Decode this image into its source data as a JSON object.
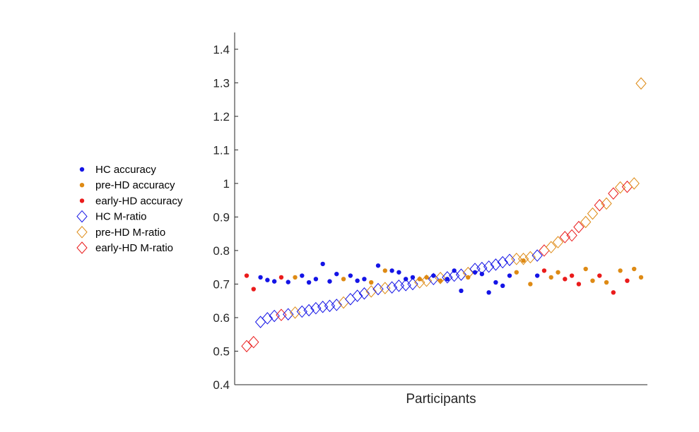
{
  "chart_data": {
    "type": "scatter",
    "title": "",
    "xlabel": "Participants",
    "ylabel": "",
    "ylim": [
      0.4,
      1.45
    ],
    "yticks": [
      "0.4",
      "0.5",
      "0.6",
      "0.7",
      "0.8",
      "0.9",
      "1",
      "1.1",
      "1.2",
      "1.3",
      "1.4"
    ],
    "grid": false,
    "legend_position": "left",
    "colors": {
      "HC": "#1414e6",
      "pre-HD": "#de8a14",
      "early-HD": "#ea1b1b"
    },
    "legend": [
      {
        "label": "HC accuracy",
        "marker": "dot",
        "group": "HC"
      },
      {
        "label": "pre-HD accuracy",
        "marker": "dot",
        "group": "pre-HD"
      },
      {
        "label": "early-HD accuracy",
        "marker": "dot",
        "group": "early-HD"
      },
      {
        "label": "HC M-ratio",
        "marker": "diamond",
        "group": "HC"
      },
      {
        "label": "pre-HD M-ratio",
        "marker": "diamond",
        "group": "pre-HD"
      },
      {
        "label": "early-HD M-ratio",
        "marker": "diamond",
        "group": "early-HD"
      }
    ],
    "participants": [
      {
        "g": "early-HD",
        "m": 0.515,
        "a": 0.725
      },
      {
        "g": "early-HD",
        "m": 0.527,
        "a": 0.685
      },
      {
        "g": "HC",
        "m": 0.587,
        "a": 0.72
      },
      {
        "g": "HC",
        "m": 0.598,
        "a": 0.712
      },
      {
        "g": "HC",
        "m": 0.605,
        "a": 0.708
      },
      {
        "g": "early-HD",
        "m": 0.608,
        "a": 0.72
      },
      {
        "g": "HC",
        "m": 0.61,
        "a": 0.706
      },
      {
        "g": "pre-HD",
        "m": 0.615,
        "a": 0.72
      },
      {
        "g": "HC",
        "m": 0.618,
        "a": 0.725
      },
      {
        "g": "HC",
        "m": 0.622,
        "a": 0.705
      },
      {
        "g": "HC",
        "m": 0.628,
        "a": 0.715
      },
      {
        "g": "HC",
        "m": 0.632,
        "a": 0.76
      },
      {
        "g": "HC",
        "m": 0.635,
        "a": 0.708
      },
      {
        "g": "HC",
        "m": 0.638,
        "a": 0.73
      },
      {
        "g": "pre-HD",
        "m": 0.645,
        "a": 0.715
      },
      {
        "g": "HC",
        "m": 0.655,
        "a": 0.725
      },
      {
        "g": "HC",
        "m": 0.665,
        "a": 0.71
      },
      {
        "g": "HC",
        "m": 0.672,
        "a": 0.715
      },
      {
        "g": "pre-HD",
        "m": 0.678,
        "a": 0.705
      },
      {
        "g": "HC",
        "m": 0.685,
        "a": 0.755
      },
      {
        "g": "pre-HD",
        "m": 0.688,
        "a": 0.74
      },
      {
        "g": "HC",
        "m": 0.69,
        "a": 0.74
      },
      {
        "g": "HC",
        "m": 0.695,
        "a": 0.735
      },
      {
        "g": "HC",
        "m": 0.697,
        "a": 0.715
      },
      {
        "g": "HC",
        "m": 0.7,
        "a": 0.72
      },
      {
        "g": "pre-HD",
        "m": 0.705,
        "a": 0.715
      },
      {
        "g": "pre-HD",
        "m": 0.71,
        "a": 0.72
      },
      {
        "g": "HC",
        "m": 0.715,
        "a": 0.725
      },
      {
        "g": "pre-HD",
        "m": 0.718,
        "a": 0.71
      },
      {
        "g": "HC",
        "m": 0.72,
        "a": 0.715
      },
      {
        "g": "HC",
        "m": 0.725,
        "a": 0.74
      },
      {
        "g": "HC",
        "m": 0.728,
        "a": 0.68
      },
      {
        "g": "pre-HD",
        "m": 0.733,
        "a": 0.72
      },
      {
        "g": "HC",
        "m": 0.745,
        "a": 0.735
      },
      {
        "g": "HC",
        "m": 0.748,
        "a": 0.73
      },
      {
        "g": "HC",
        "m": 0.752,
        "a": 0.675
      },
      {
        "g": "HC",
        "m": 0.758,
        "a": 0.705
      },
      {
        "g": "HC",
        "m": 0.765,
        "a": 0.695
      },
      {
        "g": "HC",
        "m": 0.772,
        "a": 0.725
      },
      {
        "g": "pre-HD",
        "m": 0.775,
        "a": 0.735
      },
      {
        "g": "pre-HD",
        "m": 0.775,
        "a": 0.77
      },
      {
        "g": "pre-HD",
        "m": 0.78,
        "a": 0.7
      },
      {
        "g": "HC",
        "m": 0.785,
        "a": 0.725
      },
      {
        "g": "early-HD",
        "m": 0.8,
        "a": 0.74
      },
      {
        "g": "pre-HD",
        "m": 0.81,
        "a": 0.72
      },
      {
        "g": "pre-HD",
        "m": 0.825,
        "a": 0.735
      },
      {
        "g": "early-HD",
        "m": 0.84,
        "a": 0.715
      },
      {
        "g": "early-HD",
        "m": 0.845,
        "a": 0.725
      },
      {
        "g": "early-HD",
        "m": 0.87,
        "a": 0.7
      },
      {
        "g": "pre-HD",
        "m": 0.885,
        "a": 0.745
      },
      {
        "g": "pre-HD",
        "m": 0.91,
        "a": 0.71
      },
      {
        "g": "early-HD",
        "m": 0.935,
        "a": 0.725
      },
      {
        "g": "pre-HD",
        "m": 0.94,
        "a": 0.705
      },
      {
        "g": "early-HD",
        "m": 0.97,
        "a": 0.675
      },
      {
        "g": "pre-HD",
        "m": 0.988,
        "a": 0.74
      },
      {
        "g": "early-HD",
        "m": 0.99,
        "a": 0.71
      },
      {
        "g": "pre-HD",
        "m": 1.0,
        "a": 0.745
      },
      {
        "g": "pre-HD",
        "m": 1.298,
        "a": 0.72
      }
    ]
  }
}
